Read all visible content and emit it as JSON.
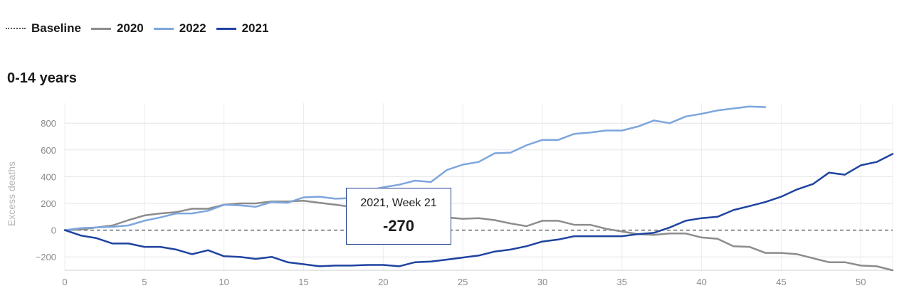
{
  "legend": [
    {
      "label": "Baseline",
      "style": "dotted",
      "color": "#555555"
    },
    {
      "label": "2020",
      "style": "solid",
      "color": "#8c8c8c"
    },
    {
      "label": "2022",
      "style": "solid",
      "color": "#7ea6dc"
    },
    {
      "label": "2021",
      "style": "solid",
      "color": "#1f43a0"
    }
  ],
  "panel_title": "0-14 years",
  "tooltip": {
    "label": "2021, Week 21",
    "value": "-270"
  },
  "chart_data": {
    "type": "line",
    "title": "0-14 years",
    "xlabel": "",
    "ylabel": "Excess deaths",
    "xlim": [
      0,
      52
    ],
    "ylim": [
      -300,
      950
    ],
    "xticks": [
      0,
      5,
      10,
      15,
      20,
      25,
      30,
      35,
      40,
      45,
      50
    ],
    "yticks": [
      -200,
      0,
      200,
      400,
      600,
      800
    ],
    "baseline": 0,
    "series": [
      {
        "name": "2020",
        "color": "#8c8c8c",
        "x": [
          0,
          1,
          2,
          3,
          4,
          5,
          6,
          7,
          8,
          9,
          10,
          11,
          12,
          13,
          14,
          15,
          16,
          17,
          18,
          19,
          20,
          21,
          22,
          23,
          24,
          25,
          26,
          27,
          28,
          29,
          30,
          31,
          32,
          33,
          34,
          35,
          36,
          37,
          38,
          39,
          40,
          41,
          42,
          43,
          44,
          45,
          46,
          47,
          48,
          49,
          50,
          51,
          52
        ],
        "values": [
          0,
          5,
          20,
          35,
          75,
          110,
          125,
          135,
          160,
          160,
          190,
          200,
          200,
          215,
          215,
          220,
          205,
          190,
          175,
          155,
          140,
          120,
          110,
          100,
          95,
          85,
          90,
          75,
          50,
          30,
          70,
          70,
          40,
          40,
          10,
          -10,
          -30,
          -35,
          -25,
          -25,
          -55,
          -65,
          -120,
          -125,
          -170,
          -170,
          -180,
          -210,
          -240,
          -240,
          -265,
          -270,
          -300
        ]
      },
      {
        "name": "2022",
        "color": "#7ea6dc",
        "x": [
          0,
          1,
          2,
          3,
          4,
          5,
          6,
          7,
          8,
          9,
          10,
          11,
          12,
          13,
          14,
          15,
          16,
          17,
          18,
          19,
          20,
          21,
          22,
          23,
          24,
          25,
          26,
          27,
          28,
          29,
          30,
          31,
          32,
          33,
          34,
          35,
          36,
          37,
          38,
          39,
          40,
          41,
          42,
          43,
          44
        ],
        "values": [
          0,
          15,
          20,
          25,
          35,
          70,
          95,
          125,
          125,
          145,
          190,
          185,
          175,
          210,
          205,
          245,
          250,
          235,
          240,
          295,
          320,
          340,
          370,
          360,
          450,
          490,
          510,
          575,
          580,
          635,
          675,
          675,
          720,
          730,
          745,
          745,
          775,
          820,
          800,
          850,
          870,
          895,
          910,
          925,
          920
        ]
      },
      {
        "name": "2021",
        "color": "#1f43a0",
        "x": [
          0,
          1,
          2,
          3,
          4,
          5,
          6,
          7,
          8,
          9,
          10,
          11,
          12,
          13,
          14,
          15,
          16,
          17,
          18,
          19,
          20,
          21,
          22,
          23,
          24,
          25,
          26,
          27,
          28,
          29,
          30,
          31,
          32,
          33,
          34,
          35,
          36,
          37,
          38,
          39,
          40,
          41,
          42,
          43,
          44,
          45,
          46,
          47,
          48,
          49,
          50,
          51,
          52
        ],
        "values": [
          0,
          -40,
          -60,
          -100,
          -100,
          -125,
          -125,
          -145,
          -180,
          -150,
          -195,
          -200,
          -215,
          -200,
          -240,
          -255,
          -270,
          -265,
          -265,
          -260,
          -260,
          -270,
          -240,
          -235,
          -220,
          -205,
          -190,
          -160,
          -145,
          -120,
          -85,
          -70,
          -45,
          -45,
          -45,
          -45,
          -30,
          -20,
          20,
          70,
          90,
          100,
          150,
          180,
          210,
          250,
          305,
          345,
          430,
          415,
          485,
          510,
          570
        ]
      }
    ]
  }
}
